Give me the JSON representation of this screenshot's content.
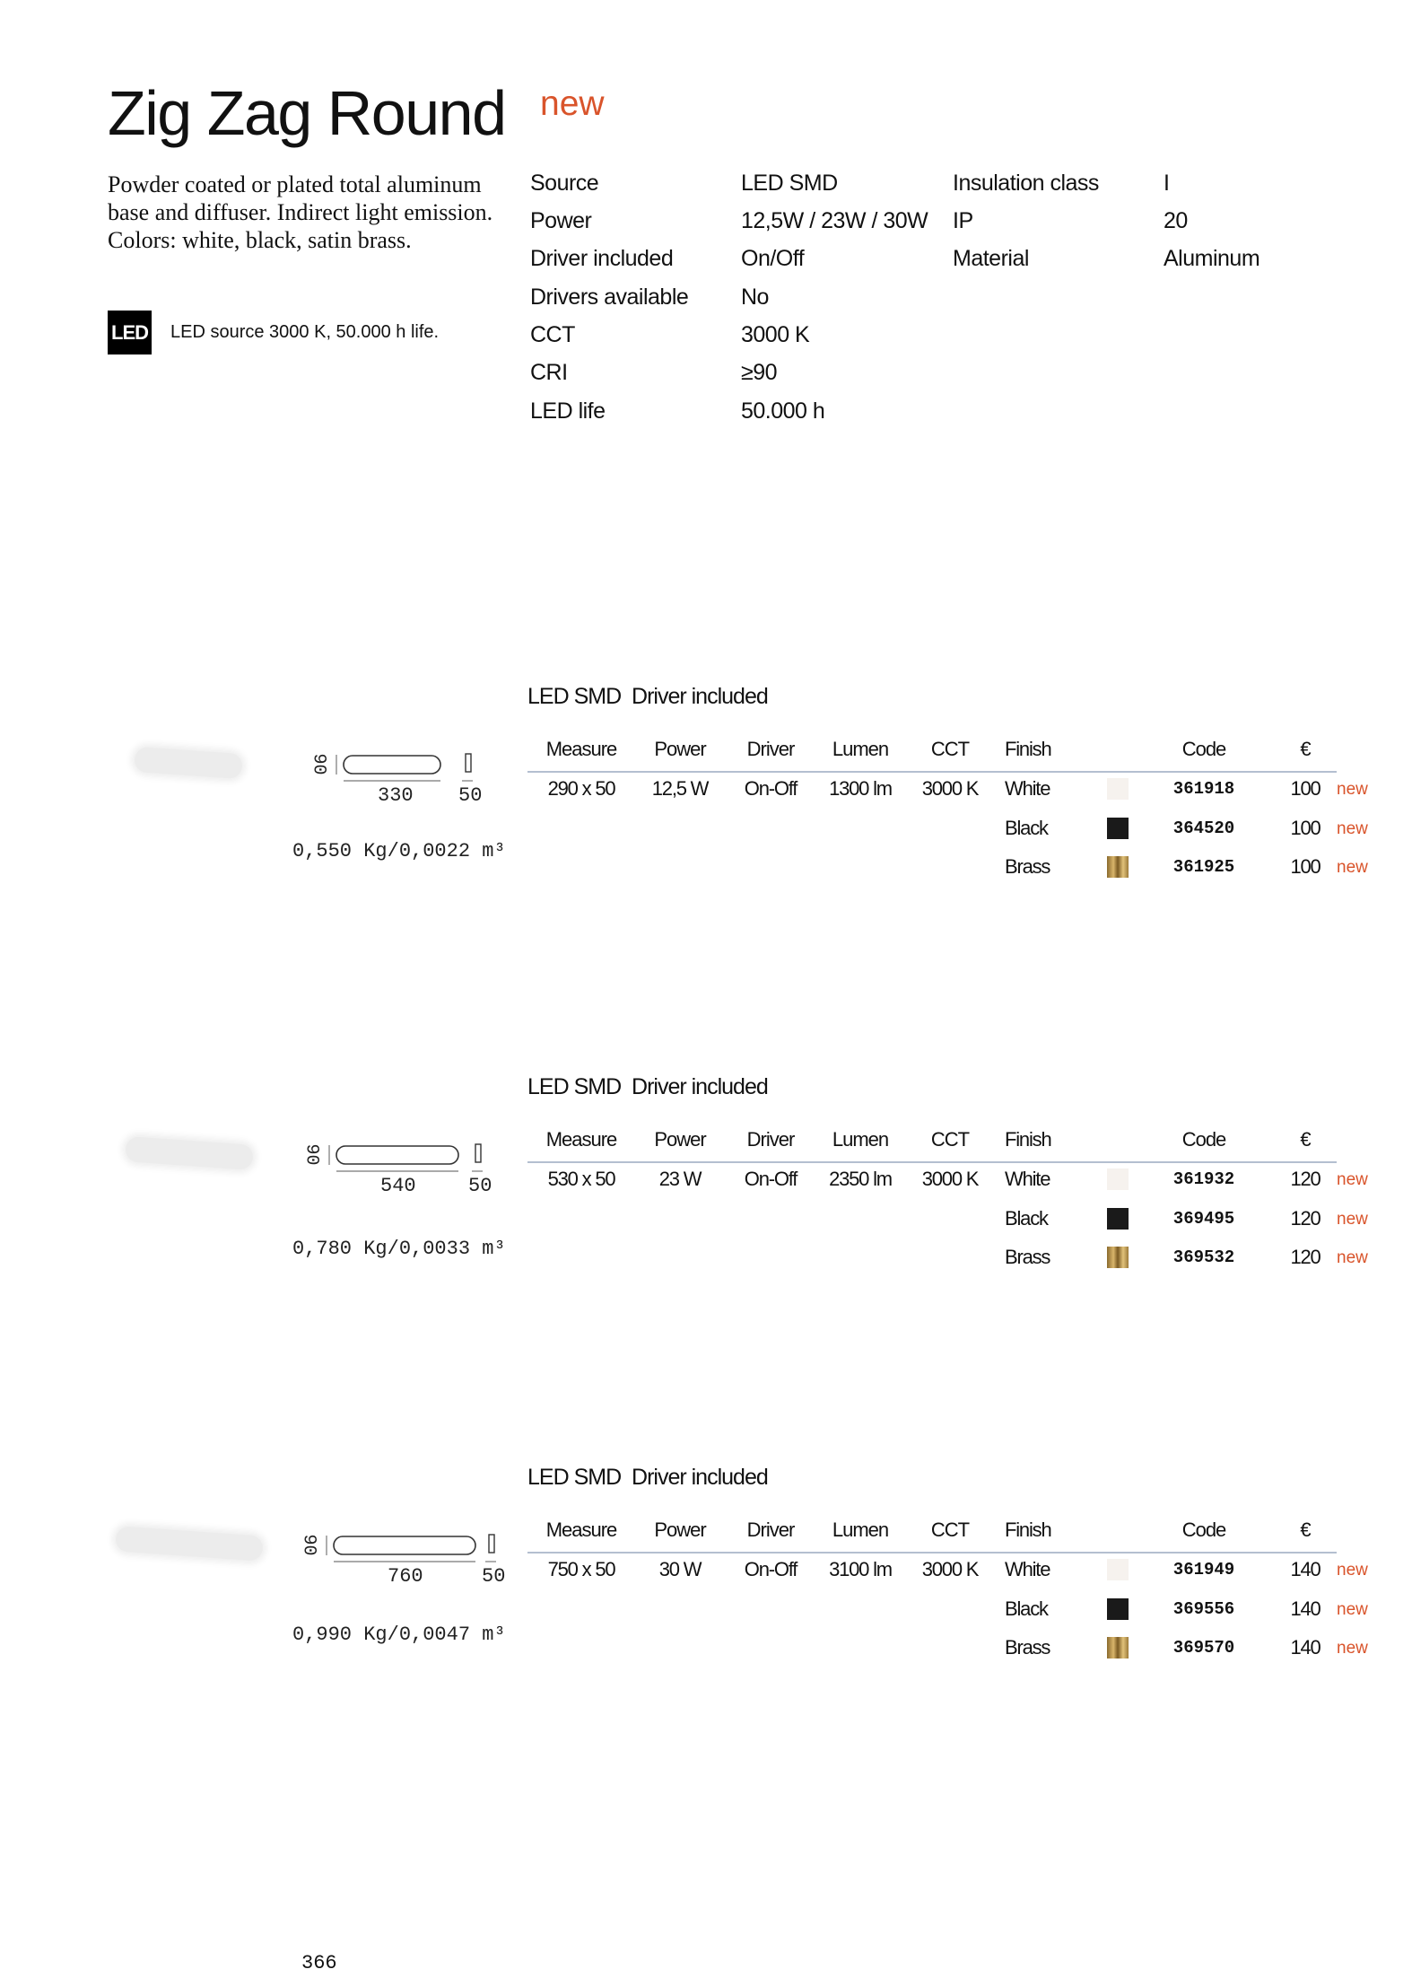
{
  "header": {
    "title": "Zig Zag Round",
    "badge": "new"
  },
  "description": "Powder coated or plated total aluminum base and diffuser. Indirect light emission. Colors: white, black, satin brass.",
  "led": {
    "badge": "LED",
    "text": "LED source 3000 K, 50.000 h life."
  },
  "specs_left": [
    [
      "Source",
      "LED SMD"
    ],
    [
      "Power",
      "12,5W / 23W / 30W"
    ],
    [
      "Driver included",
      "On/Off"
    ],
    [
      "Drivers available",
      "No"
    ],
    [
      "CCT",
      "3000 K"
    ],
    [
      "CRI",
      "≥90"
    ],
    [
      "LED life",
      "50.000 h"
    ]
  ],
  "specs_right": [
    [
      "Insulation class",
      "I"
    ],
    [
      "IP",
      "20"
    ],
    [
      "Material",
      "Aluminum"
    ]
  ],
  "products": [
    {
      "heading": "LED SMD  Driver included",
      "columns": [
        "Measure",
        "Power",
        "Driver",
        "Lumen",
        "CCT",
        "Finish",
        "Code",
        "€"
      ],
      "row": [
        "290 x 50",
        "12,5 W",
        "On-Off",
        "1300 lm",
        "3000 K"
      ],
      "finishes": [
        {
          "name": "White",
          "code": "361918",
          "price": "100",
          "tag": "new"
        },
        {
          "name": "Black",
          "code": "364520",
          "price": "100",
          "tag": "new"
        },
        {
          "name": "Brass",
          "code": "361925",
          "price": "100",
          "tag": "new"
        }
      ],
      "dims": {
        "height": "90",
        "length": "330",
        "depth": "50"
      },
      "weight": "0,550 Kg/0,0022 m³"
    },
    {
      "heading": "LED SMD  Driver included",
      "columns": [
        "Measure",
        "Power",
        "Driver",
        "Lumen",
        "CCT",
        "Finish",
        "Code",
        "€"
      ],
      "row": [
        "530 x 50",
        "23 W",
        "On-Off",
        "2350 lm",
        "3000 K"
      ],
      "finishes": [
        {
          "name": "White",
          "code": "361932",
          "price": "120",
          "tag": "new"
        },
        {
          "name": "Black",
          "code": "369495",
          "price": "120",
          "tag": "new"
        },
        {
          "name": "Brass",
          "code": "369532",
          "price": "120",
          "tag": "new"
        }
      ],
      "dims": {
        "height": "90",
        "length": "540",
        "depth": "50"
      },
      "weight": "0,780 Kg/0,0033 m³"
    },
    {
      "heading": "LED SMD  Driver included",
      "columns": [
        "Measure",
        "Power",
        "Driver",
        "Lumen",
        "CCT",
        "Finish",
        "Code",
        "€"
      ],
      "row": [
        "750 x 50",
        "30 W",
        "On-Off",
        "3100 lm",
        "3000 K"
      ],
      "finishes": [
        {
          "name": "White",
          "code": "361949",
          "price": "140",
          "tag": "new"
        },
        {
          "name": "Black",
          "code": "369556",
          "price": "140",
          "tag": "new"
        },
        {
          "name": "Brass",
          "code": "369570",
          "price": "140",
          "tag": "new"
        }
      ],
      "dims": {
        "height": "90",
        "length": "760",
        "depth": "50"
      },
      "weight": "0,990 Kg/0,0047 m³"
    }
  ],
  "page_number": "366"
}
